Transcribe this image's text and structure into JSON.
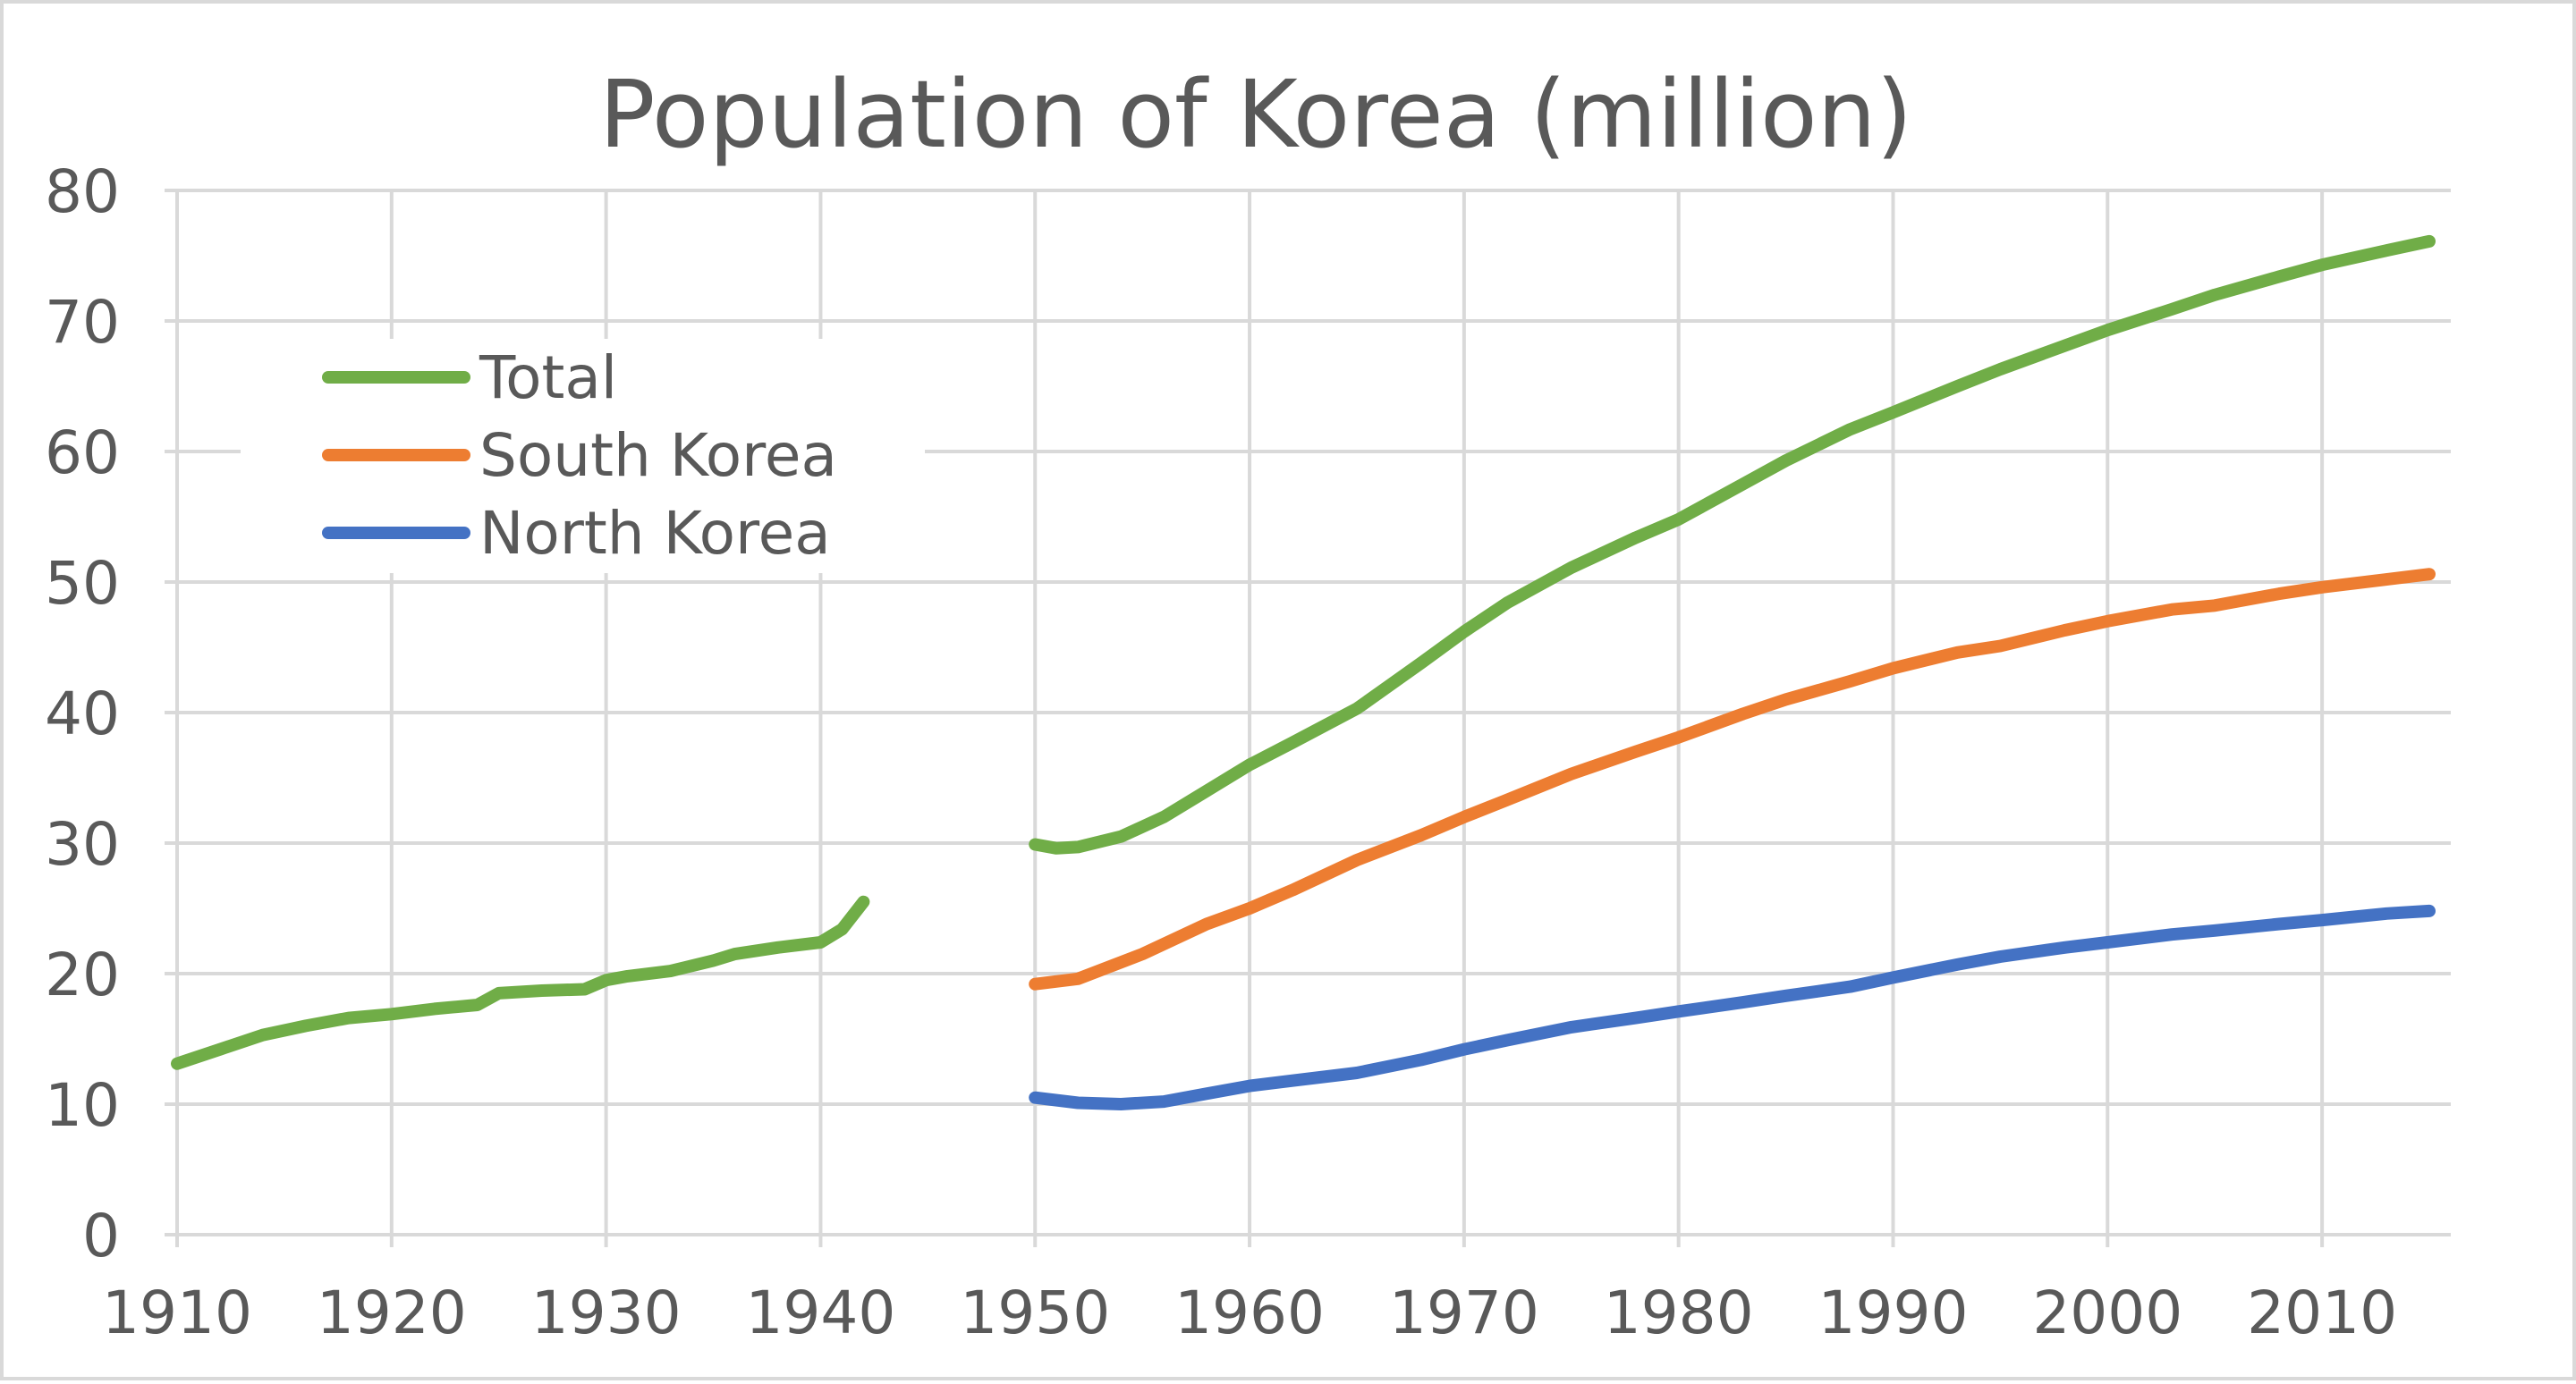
{
  "chart_data": {
    "type": "line",
    "title": "Population of Korea (million)",
    "xlabel": "",
    "ylabel": "",
    "xlim": [
      1910,
      2016
    ],
    "ylim": [
      0,
      80
    ],
    "x_ticks": [
      1910,
      1920,
      1930,
      1940,
      1950,
      1960,
      1970,
      1980,
      1990,
      2000,
      2010
    ],
    "y_ticks": [
      0,
      10,
      20,
      30,
      40,
      50,
      60,
      70,
      80
    ],
    "grid": true,
    "legend_position": "top-left",
    "series": [
      {
        "name": "Total",
        "color": "#70ad47",
        "segments": [
          [
            [
              1910,
              13.1
            ],
            [
              1912,
              14.2
            ],
            [
              1914,
              15.3
            ],
            [
              1916,
              16.0
            ],
            [
              1918,
              16.6
            ],
            [
              1920,
              16.9
            ],
            [
              1922,
              17.3
            ],
            [
              1924,
              17.6
            ],
            [
              1925,
              18.5
            ],
            [
              1927,
              18.7
            ],
            [
              1929,
              18.8
            ],
            [
              1930,
              19.5
            ],
            [
              1931,
              19.8
            ],
            [
              1933,
              20.2
            ],
            [
              1935,
              21.0
            ],
            [
              1936,
              21.5
            ],
            [
              1938,
              22.0
            ],
            [
              1940,
              22.4
            ],
            [
              1941,
              23.4
            ],
            [
              1942,
              25.5
            ]
          ],
          [
            [
              1950,
              29.9
            ],
            [
              1951,
              29.6
            ],
            [
              1952,
              29.7
            ],
            [
              1954,
              30.5
            ],
            [
              1956,
              32.0
            ],
            [
              1958,
              34.0
            ],
            [
              1960,
              36.0
            ],
            [
              1962,
              37.7
            ],
            [
              1965,
              40.3
            ],
            [
              1968,
              43.8
            ],
            [
              1970,
              46.2
            ],
            [
              1972,
              48.4
            ],
            [
              1975,
              51.1
            ],
            [
              1978,
              53.4
            ],
            [
              1980,
              54.8
            ],
            [
              1983,
              57.5
            ],
            [
              1985,
              59.3
            ],
            [
              1988,
              61.7
            ],
            [
              1990,
              63.0
            ],
            [
              1993,
              65.0
            ],
            [
              1995,
              66.3
            ],
            [
              1998,
              68.1
            ],
            [
              2000,
              69.3
            ],
            [
              2003,
              70.9
            ],
            [
              2005,
              72.0
            ],
            [
              2008,
              73.4
            ],
            [
              2010,
              74.3
            ],
            [
              2013,
              75.4
            ],
            [
              2015,
              76.1
            ]
          ]
        ]
      },
      {
        "name": "South Korea",
        "color": "#ed7d31",
        "segments": [
          [
            [
              1950,
              19.2
            ],
            [
              1952,
              19.6
            ],
            [
              1955,
              21.5
            ],
            [
              1958,
              23.8
            ],
            [
              1960,
              25.0
            ],
            [
              1962,
              26.4
            ],
            [
              1965,
              28.7
            ],
            [
              1968,
              30.6
            ],
            [
              1970,
              32.0
            ],
            [
              1972,
              33.3
            ],
            [
              1975,
              35.3
            ],
            [
              1978,
              37.0
            ],
            [
              1980,
              38.1
            ],
            [
              1983,
              39.9
            ],
            [
              1985,
              41.0
            ],
            [
              1988,
              42.4
            ],
            [
              1990,
              43.4
            ],
            [
              1993,
              44.6
            ],
            [
              1995,
              45.1
            ],
            [
              1998,
              46.3
            ],
            [
              2000,
              47.0
            ],
            [
              2003,
              47.9
            ],
            [
              2005,
              48.2
            ],
            [
              2008,
              49.1
            ],
            [
              2010,
              49.6
            ],
            [
              2013,
              50.2
            ],
            [
              2015,
              50.6
            ]
          ]
        ]
      },
      {
        "name": "North Korea",
        "color": "#4472c4",
        "segments": [
          [
            [
              1950,
              10.5
            ],
            [
              1952,
              10.1
            ],
            [
              1954,
              10.0
            ],
            [
              1956,
              10.2
            ],
            [
              1958,
              10.8
            ],
            [
              1960,
              11.4
            ],
            [
              1962,
              11.8
            ],
            [
              1965,
              12.4
            ],
            [
              1968,
              13.4
            ],
            [
              1970,
              14.2
            ],
            [
              1972,
              14.9
            ],
            [
              1975,
              15.9
            ],
            [
              1978,
              16.6
            ],
            [
              1980,
              17.1
            ],
            [
              1983,
              17.8
            ],
            [
              1985,
              18.3
            ],
            [
              1988,
              19.0
            ],
            [
              1990,
              19.7
            ],
            [
              1993,
              20.7
            ],
            [
              1995,
              21.3
            ],
            [
              1998,
              22.0
            ],
            [
              2000,
              22.4
            ],
            [
              2003,
              23.0
            ],
            [
              2005,
              23.3
            ],
            [
              2008,
              23.8
            ],
            [
              2010,
              24.1
            ],
            [
              2013,
              24.6
            ],
            [
              2015,
              24.8
            ]
          ]
        ]
      }
    ]
  }
}
